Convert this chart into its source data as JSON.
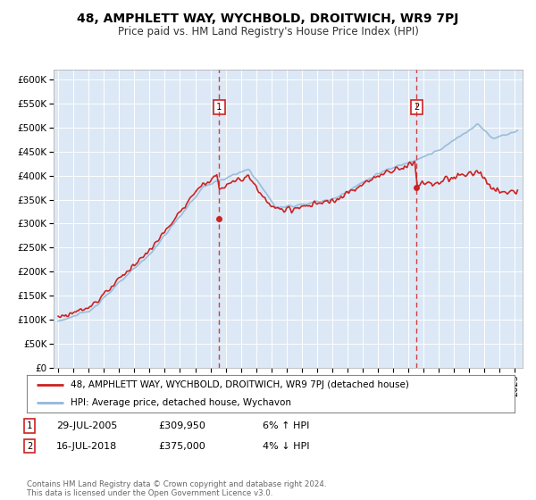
{
  "title": "48, AMPHLETT WAY, WYCHBOLD, DROITWICH, WR9 7PJ",
  "subtitle": "Price paid vs. HM Land Registry's House Price Index (HPI)",
  "legend_line1": "48, AMPHLETT WAY, WYCHBOLD, DROITWICH, WR9 7PJ (detached house)",
  "legend_line2": "HPI: Average price, detached house, Wychavon",
  "annotation1_date": "29-JUL-2005",
  "annotation1_price": "£309,950",
  "annotation1_pct": "6% ↑ HPI",
  "annotation2_date": "16-JUL-2018",
  "annotation2_price": "£375,000",
  "annotation2_pct": "4% ↓ HPI",
  "footnote": "Contains HM Land Registry data © Crown copyright and database right 2024.\nThis data is licensed under the Open Government Licence v3.0.",
  "hpi_color": "#92b8d8",
  "price_color": "#cc2222",
  "marker_color": "#cc2222",
  "plot_bg": "#dce8f5",
  "grid_color": "#ffffff",
  "fig_bg": "#ffffff",
  "ylim": [
    0,
    620000
  ],
  "yticks": [
    0,
    50000,
    100000,
    150000,
    200000,
    250000,
    300000,
    350000,
    400000,
    450000,
    500000,
    550000,
    600000
  ],
  "ytick_labels": [
    "£0",
    "£50K",
    "£100K",
    "£150K",
    "£200K",
    "£250K",
    "£300K",
    "£350K",
    "£400K",
    "£450K",
    "£500K",
    "£550K",
    "£600K"
  ],
  "sale1_x": 2005.57,
  "sale1_y": 309950,
  "sale2_x": 2018.54,
  "sale2_y": 375000,
  "xmin": 1994.7,
  "xmax": 2025.5,
  "ann_box_color": "#cc2222"
}
